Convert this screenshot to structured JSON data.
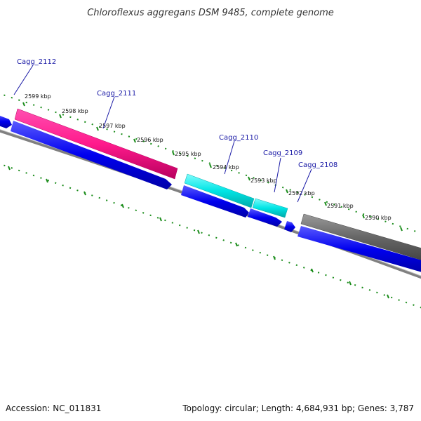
{
  "title": "Chloroflexus aggregans DSM 9485, complete genome",
  "footer": {
    "accession": "Accession: NC_011831",
    "summary": "Topology: circular; Length: 4,684,931 bp; Genes: 3,787"
  },
  "ticks": [
    {
      "label": "2599 kbp"
    },
    {
      "label": "2598 kbp"
    },
    {
      "label": "2597 kbp"
    },
    {
      "label": "2596 kbp"
    },
    {
      "label": "2595 kbp"
    },
    {
      "label": "2594 kbp"
    },
    {
      "label": "2593 kbp"
    },
    {
      "label": "2592 kbp"
    },
    {
      "label": "2591 kbp"
    },
    {
      "label": "2590 kbp"
    }
  ],
  "genes": [
    {
      "label": "Cagg_2112"
    },
    {
      "label": "Cagg_2111"
    },
    {
      "label": "Cagg_2110"
    },
    {
      "label": "Cagg_2109"
    },
    {
      "label": "Cagg_2108"
    }
  ],
  "colors": {
    "cds": "#0000ee",
    "gene_magenta": "#ff1a8c",
    "gene_cyan": "#00e5e5",
    "gene_gray": "#666666",
    "backbone": "#808080",
    "ticks": "#1a8c1a",
    "label": "#1a1aa6"
  }
}
